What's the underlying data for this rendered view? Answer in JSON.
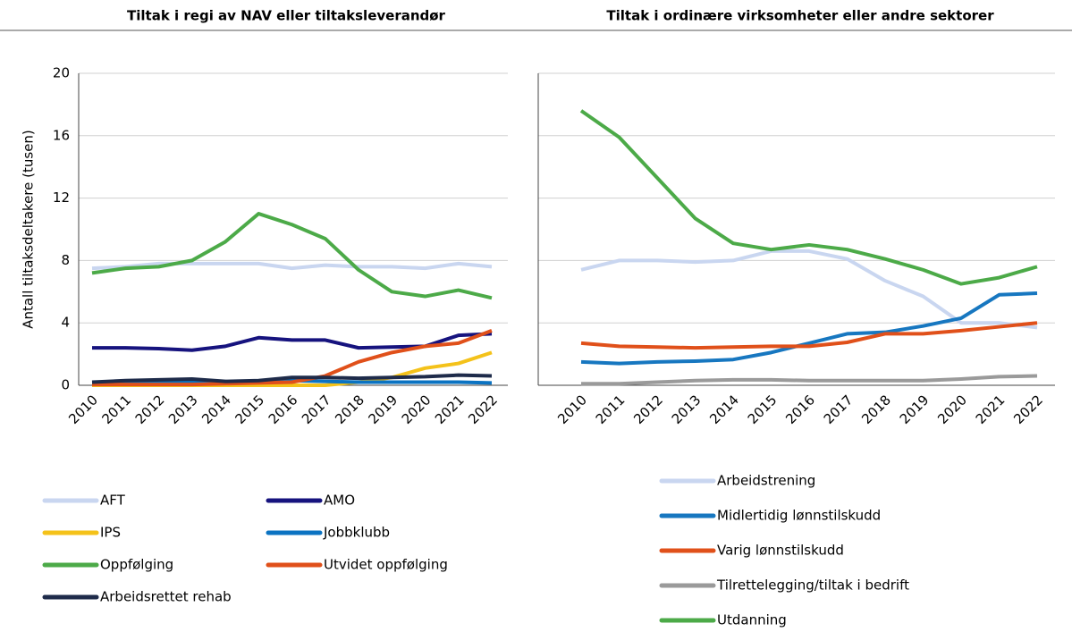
{
  "chart_data": [
    {
      "type": "line",
      "title": "Tiltak i regi av NAV eller tiltaksleverandør",
      "ylabel": "Antall tiltaksdeltakere (tusen)",
      "x": [
        "2010",
        "2011",
        "2012",
        "2013",
        "2014",
        "2015",
        "2016",
        "2017",
        "2018",
        "2019",
        "2020",
        "2021",
        "2022"
      ],
      "ylim": [
        0,
        20
      ],
      "yticks": [
        0,
        4,
        8,
        12,
        16,
        20
      ],
      "grid": true,
      "series": [
        {
          "name": "AFT",
          "color": "#c9d6f0",
          "values": [
            7.5,
            7.6,
            7.8,
            7.8,
            7.8,
            7.8,
            7.5,
            7.7,
            7.6,
            7.6,
            7.5,
            7.8,
            7.6
          ]
        },
        {
          "name": "AMO",
          "color": "#16137e",
          "values": [
            2.4,
            2.4,
            2.35,
            2.25,
            2.5,
            3.05,
            2.9,
            2.9,
            2.4,
            2.45,
            2.5,
            3.2,
            3.3
          ]
        },
        {
          "name": "IPS",
          "color": "#f4c21a",
          "values": [
            0,
            0,
            0,
            0,
            0,
            0,
            0,
            0,
            0.2,
            0.5,
            1.1,
            1.4,
            2.1
          ]
        },
        {
          "name": "Jobbklubb",
          "color": "#0b73c2",
          "values": [
            0.2,
            0.2,
            0.2,
            0.2,
            0.2,
            0.25,
            0.3,
            0.25,
            0.2,
            0.2,
            0.2,
            0.2,
            0.15
          ]
        },
        {
          "name": "Oppfølging",
          "color": "#4caa48",
          "values": [
            7.2,
            7.5,
            7.6,
            8.0,
            9.2,
            11.0,
            10.3,
            9.4,
            7.4,
            6.0,
            5.7,
            6.1,
            5.6
          ]
        },
        {
          "name": "Utvidet oppfølging",
          "color": "#e0501a",
          "values": [
            0.05,
            0.05,
            0.05,
            0.05,
            0.1,
            0.15,
            0.2,
            0.6,
            1.5,
            2.1,
            2.5,
            2.7,
            3.5
          ]
        },
        {
          "name": "Arbeidsrettet rehab",
          "color": "#1e2b4a",
          "values": [
            0.2,
            0.3,
            0.35,
            0.4,
            0.25,
            0.3,
            0.5,
            0.5,
            0.45,
            0.5,
            0.55,
            0.65,
            0.6
          ]
        }
      ]
    },
    {
      "type": "line",
      "title": "Tiltak i ordinære virksomheter eller andre sektorer",
      "x": [
        "2010",
        "2011",
        "2012",
        "2013",
        "2014",
        "2015",
        "2016",
        "2017",
        "2018",
        "2019",
        "2020",
        "2021",
        "2022"
      ],
      "ylim": [
        0,
        20
      ],
      "yticks": [
        0,
        4,
        8,
        12,
        16,
        20
      ],
      "grid": true,
      "series": [
        {
          "name": "Arbeidstrening",
          "color": "#c9d6f0",
          "values": [
            7.4,
            8.0,
            8.0,
            7.9,
            8.0,
            8.6,
            8.6,
            8.1,
            6.7,
            5.7,
            4.0,
            4.0,
            3.7
          ]
        },
        {
          "name": "Midlertidig lønnstilskudd",
          "color": "#1777c0",
          "values": [
            1.5,
            1.4,
            1.5,
            1.55,
            1.65,
            2.1,
            2.7,
            3.3,
            3.4,
            3.8,
            4.3,
            5.8,
            5.9
          ]
        },
        {
          "name": "Varig lønnstilskudd",
          "color": "#e0501a",
          "values": [
            2.7,
            2.5,
            2.45,
            2.4,
            2.45,
            2.5,
            2.5,
            2.75,
            3.3,
            3.3,
            3.5,
            3.75,
            4.0
          ]
        },
        {
          "name": "Tilrettelegging/tiltak i bedrift",
          "color": "#9a9a9a",
          "values": [
            0.1,
            0.1,
            0.2,
            0.3,
            0.35,
            0.35,
            0.3,
            0.3,
            0.3,
            0.3,
            0.4,
            0.55,
            0.6
          ]
        },
        {
          "name": "Utdanning",
          "color": "#4caa48",
          "values": [
            17.6,
            15.9,
            13.3,
            10.7,
            9.1,
            8.7,
            9.0,
            8.7,
            8.1,
            7.4,
            6.5,
            6.9,
            7.6
          ]
        }
      ]
    }
  ]
}
